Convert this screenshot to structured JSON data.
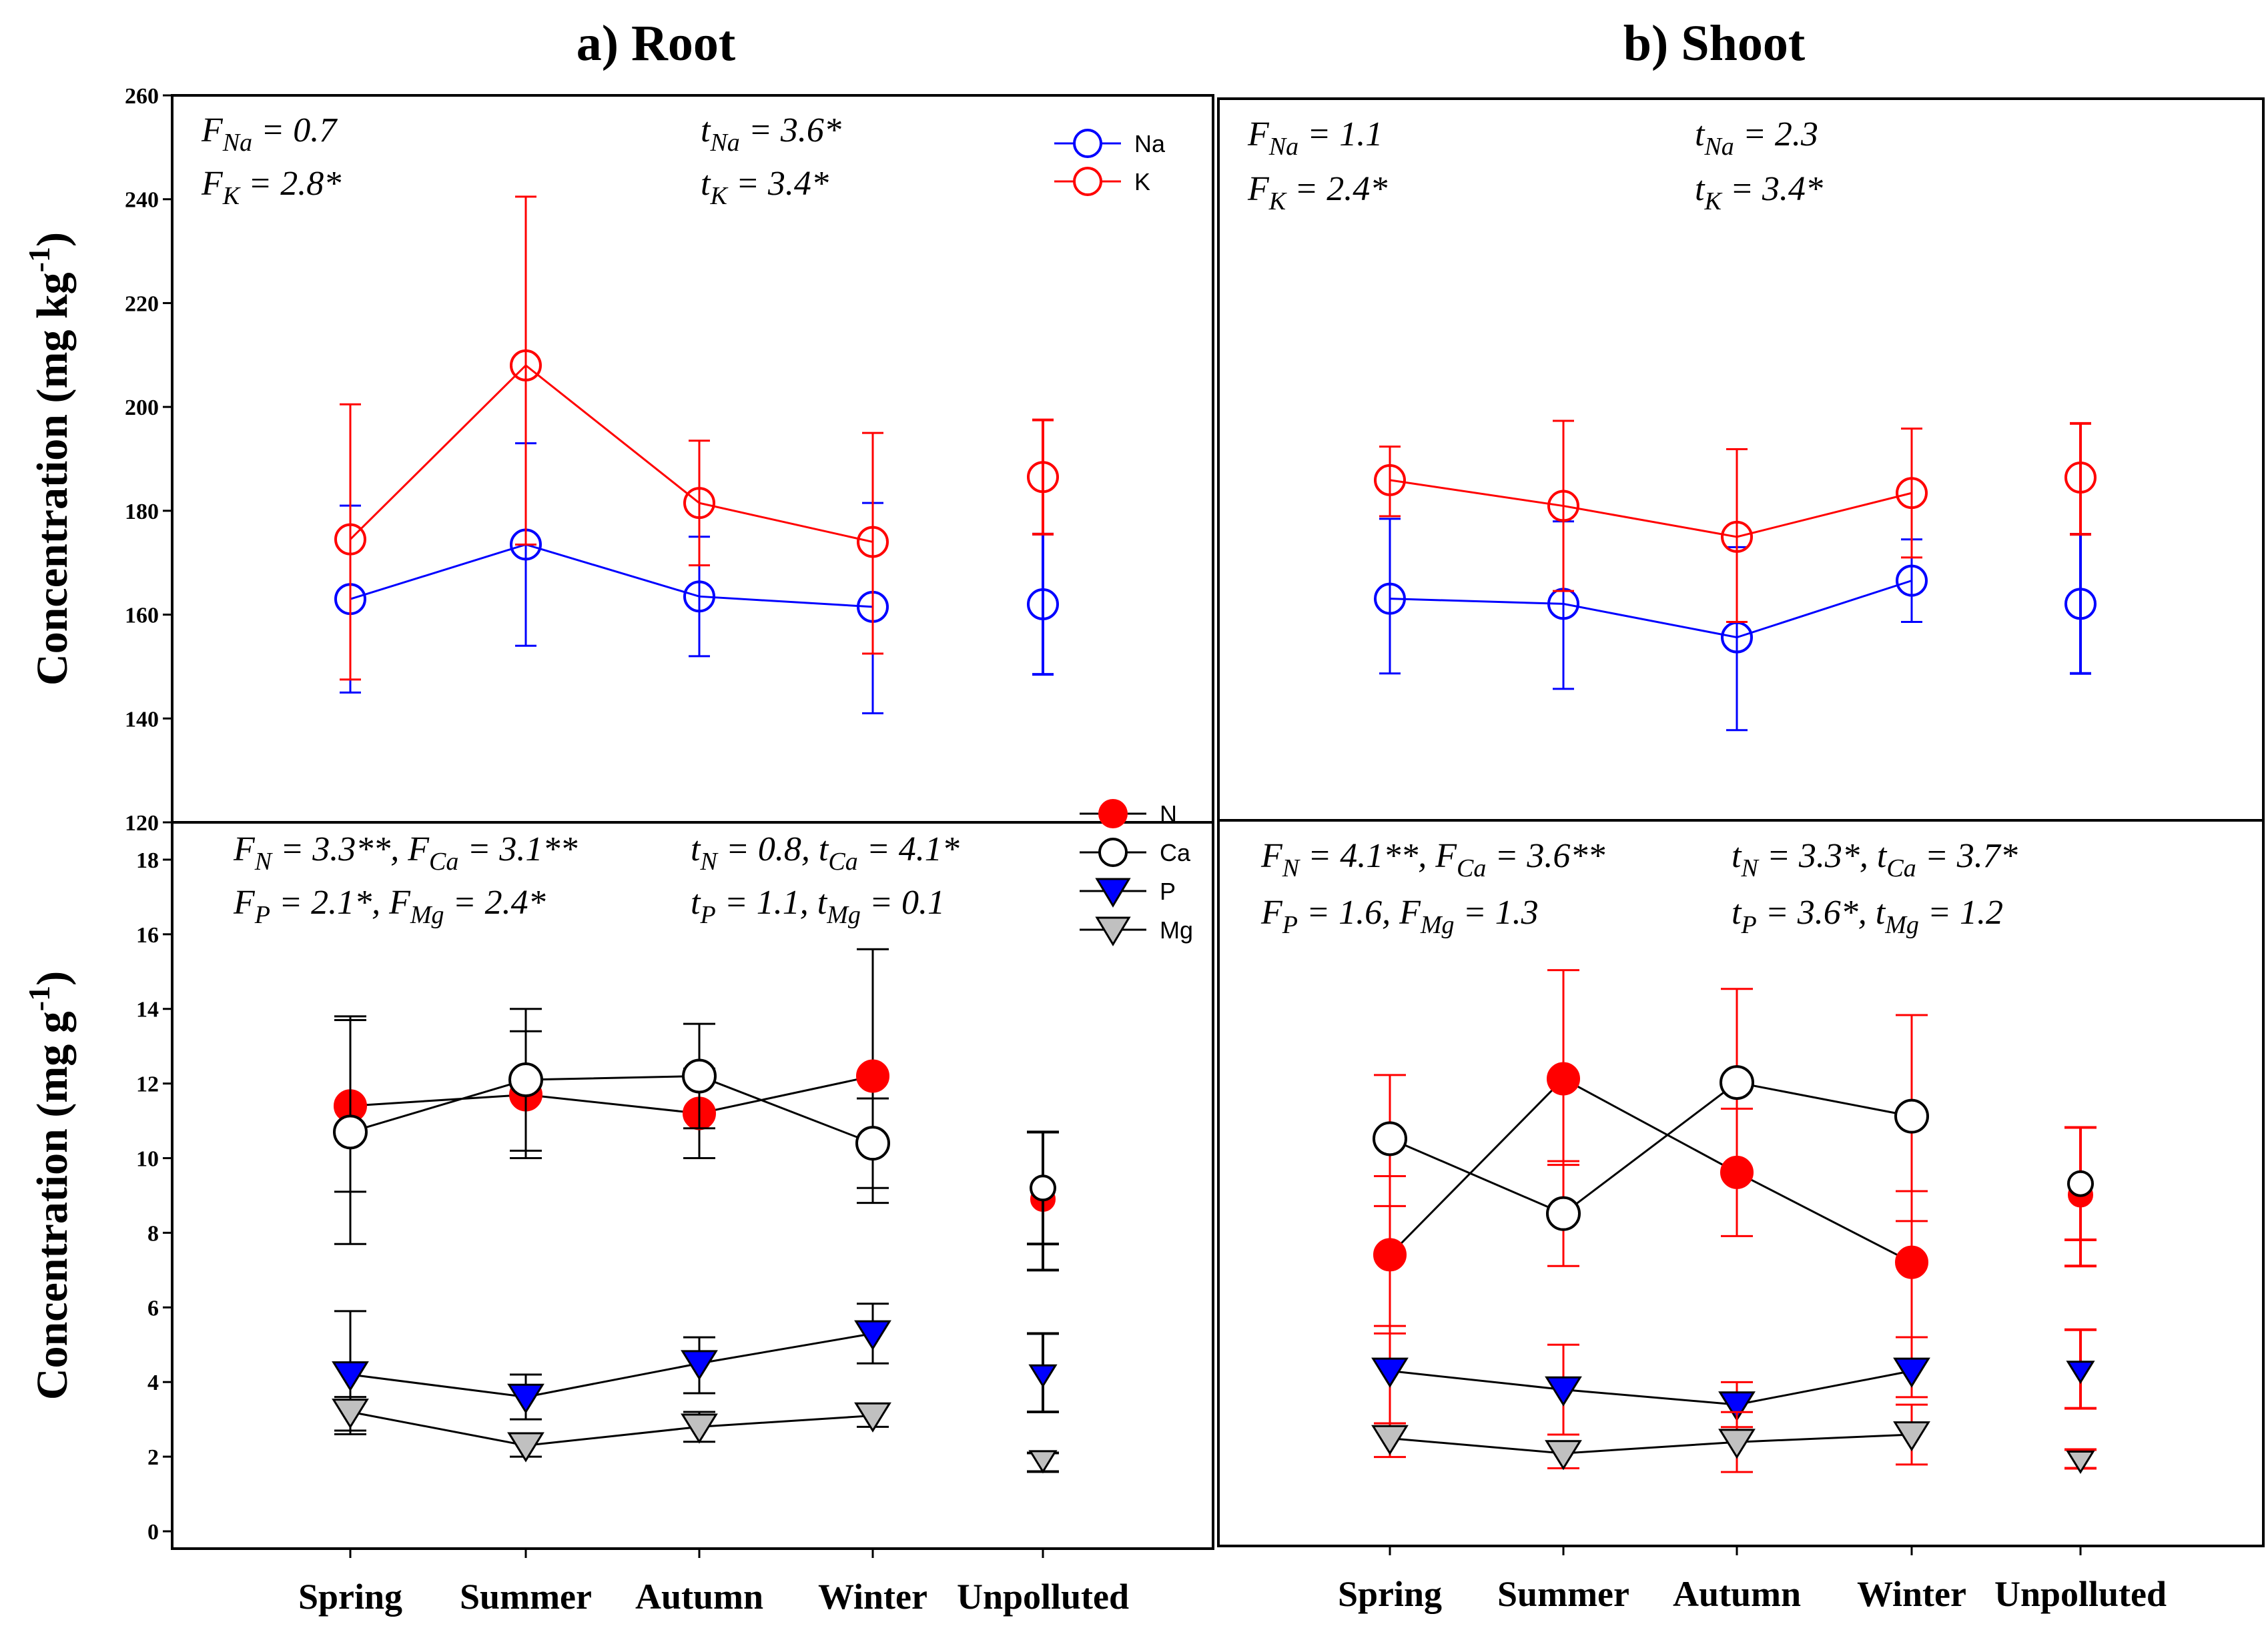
{
  "chart_data": [
    {
      "id": "root_nak",
      "type": "line",
      "title": "a) Root",
      "ylabel": "Concentration (mg kg-1)",
      "ylabel_main": "Concentration (mg kg",
      "ylabel_sup": "-1",
      "ylabel_close": ")",
      "ylim": [
        120,
        260
      ],
      "yticks": [
        120,
        140,
        160,
        180,
        200,
        220,
        240,
        260
      ],
      "categories": [
        "Spring",
        "Summer",
        "Autumn",
        "Winter",
        "Unpolluted"
      ],
      "connected_points": 4,
      "stats": [
        {
          "base": "F",
          "sub": "Na",
          "val": " = 0.7"
        },
        {
          "base": "F",
          "sub": "K",
          "val": " = 2.8*"
        },
        {
          "base": "t",
          "sub": "Na",
          "val": " = 3.6*"
        },
        {
          "base": "t",
          "sub": "K",
          "val": " = 3.4*"
        }
      ],
      "legend": [
        {
          "name": "Na",
          "marker": "circle-open",
          "color": "#0000ff"
        },
        {
          "name": "K",
          "marker": "circle-open",
          "color": "#ff0000"
        }
      ],
      "series": [
        {
          "name": "Na",
          "color": "#0000ff",
          "marker": "circle-open",
          "values": [
            163,
            173.5,
            163.5,
            161.5,
            162
          ],
          "errors": [
            [
              145,
              181
            ],
            [
              154,
              193
            ],
            [
              152,
              175
            ],
            [
              141,
              181.5
            ],
            [
              148.5,
              175.5
            ]
          ]
        },
        {
          "name": "K",
          "color": "#ff0000",
          "marker": "circle-open",
          "values": [
            174.5,
            208,
            181.5,
            174,
            186.5
          ],
          "errors": [
            [
              147.5,
              200.5
            ],
            [
              173.5,
              240.5
            ],
            [
              169.5,
              193.5
            ],
            [
              152.5,
              195
            ],
            [
              175.5,
              197.5
            ]
          ]
        }
      ]
    },
    {
      "id": "shoot_nak",
      "type": "line",
      "title": "b) Shoot",
      "ylim": [
        120,
        260
      ],
      "categories": [
        "Spring",
        "Summer",
        "Autumn",
        "Winter",
        "Unpolluted"
      ],
      "connected_points": 4,
      "stats": [
        {
          "base": "F",
          "sub": "Na",
          "val": " = 1.1"
        },
        {
          "base": "F",
          "sub": "K",
          "val": " = 2.4*"
        },
        {
          "base": "t",
          "sub": "Na",
          "val": " = 2.3"
        },
        {
          "base": "t",
          "sub": "K",
          "val": " = 3.4*"
        }
      ],
      "series": [
        {
          "name": "Na",
          "color": "#0000ff",
          "marker": "circle-open",
          "values": [
            163,
            162,
            155.5,
            166.5,
            162
          ],
          "errors": [
            [
              148.5,
              178.5
            ],
            [
              145.5,
              178
            ],
            [
              137.5,
              173
            ],
            [
              158.5,
              174.5
            ],
            [
              148.5,
              175.5
            ]
          ]
        },
        {
          "name": "K",
          "color": "#ff0000",
          "marker": "circle-open",
          "values": [
            186,
            181,
            175,
            183.5,
            186.5
          ],
          "errors": [
            [
              179,
              192.5
            ],
            [
              164.5,
              197.5
            ],
            [
              158.5,
              192
            ],
            [
              171,
              196
            ],
            [
              175.5,
              197
            ]
          ]
        }
      ]
    },
    {
      "id": "root_ncapmg",
      "type": "line",
      "ylabel": "Concentration (mg g-1)",
      "ylabel_main": "Concentration (mg g",
      "ylabel_sup": "-1",
      "ylabel_close": ")",
      "ylim": [
        0,
        19
      ],
      "yticks": [
        0,
        2,
        4,
        6,
        8,
        10,
        12,
        14,
        16,
        18
      ],
      "categories": [
        "Spring",
        "Summer",
        "Autumn",
        "Winter",
        "Unpolluted"
      ],
      "connected_points": 4,
      "stats": [
        {
          "base": "F",
          "sub": "N",
          "val": " = 3.3**, "
        },
        {
          "base": "F",
          "sub": "Ca",
          "val": " = 3.1**"
        },
        {
          "base": "F",
          "sub": "P",
          "val": " = 2.1*, "
        },
        {
          "base": "F",
          "sub": "Mg",
          "val": " = 2.4*"
        },
        {
          "base": "t",
          "sub": "N",
          "val": " =  0.8, "
        },
        {
          "base": "t",
          "sub": "Ca",
          "val": " = 4.1*"
        },
        {
          "base": "t",
          "sub": "P",
          "val": " = 1.1, "
        },
        {
          "base": "t",
          "sub": "Mg",
          "val": " = 0.1"
        }
      ],
      "legend": [
        {
          "name": "N",
          "marker": "circle-filled",
          "color": "#ff0000"
        },
        {
          "name": "Ca",
          "marker": "circle-open",
          "color": "#000000"
        },
        {
          "name": "P",
          "marker": "triangle-down",
          "color": "#0000ff"
        },
        {
          "name": "Mg",
          "marker": "triangle-down",
          "color": "#c0c0c0"
        }
      ],
      "series": [
        {
          "name": "N",
          "color": "#ff0000",
          "line": "#000000",
          "err": "#000000",
          "marker": "circle-filled",
          "values": [
            11.4,
            11.7,
            11.2,
            12.2,
            8.9
          ],
          "errors": [
            [
              9.1,
              13.7
            ],
            [
              10.0,
              13.4
            ],
            [
              10.0,
              12.4
            ],
            [
              8.8,
              15.6
            ],
            [
              7.0,
              10.7
            ]
          ]
        },
        {
          "name": "Ca",
          "color": "#ffffff",
          "line": "#000000",
          "err": "#000000",
          "marker": "circle-open",
          "values": [
            10.7,
            12.1,
            12.2,
            10.4,
            9.2
          ],
          "errors": [
            [
              7.7,
              13.8
            ],
            [
              10.2,
              14.0
            ],
            [
              10.8,
              13.6
            ],
            [
              9.2,
              11.6
            ],
            [
              7.7,
              10.7
            ]
          ]
        },
        {
          "name": "P",
          "color": "#0000ff",
          "line": "#000000",
          "err": "#000000",
          "marker": "triangle-down",
          "values": [
            4.2,
            3.6,
            4.5,
            5.3,
            4.2
          ],
          "errors": [
            [
              2.6,
              5.9
            ],
            [
              3.0,
              4.2
            ],
            [
              3.7,
              5.2
            ],
            [
              4.5,
              6.1
            ],
            [
              3.2,
              5.3
            ]
          ]
        },
        {
          "name": "Mg",
          "color": "#c0c0c0",
          "line": "#000000",
          "err": "#000000",
          "marker": "triangle-down",
          "values": [
            3.2,
            2.3,
            2.8,
            3.1,
            1.9
          ],
          "errors": [
            [
              2.7,
              3.6
            ],
            [
              2.0,
              2.6
            ],
            [
              2.4,
              3.2
            ],
            [
              2.8,
              3.4
            ],
            [
              1.6,
              2.1
            ]
          ]
        }
      ]
    },
    {
      "id": "shoot_ncapmg",
      "type": "line",
      "ylim": [
        0,
        19
      ],
      "categories": [
        "Spring",
        "Summer",
        "Autumn",
        "Winter",
        "Unpolluted"
      ],
      "connected_points": 4,
      "stats": [
        {
          "base": "F",
          "sub": "N",
          "val": " = 4.1**, "
        },
        {
          "base": "F",
          "sub": "Ca",
          "val": " = 3.6**"
        },
        {
          "base": "F",
          "sub": "P",
          "val": " = 1.6, "
        },
        {
          "base": "F",
          "sub": "Mg",
          "val": " = 1.3"
        },
        {
          "base": "t",
          "sub": "N",
          "val": " =  3.3*, "
        },
        {
          "base": "t",
          "sub": "Ca",
          "val": " = 3.7*"
        },
        {
          "base": "t",
          "sub": "P",
          "val": " = 3.6*, "
        },
        {
          "base": "t",
          "sub": "Mg",
          "val": " = 1.2"
        }
      ],
      "series": [
        {
          "name": "N",
          "color": "#ff0000",
          "line": "#000000",
          "err": "#ff0000",
          "marker": "circle-filled",
          "values": [
            7.4,
            12.1,
            9.6,
            7.2,
            9.0
          ],
          "errors": [
            [
              5.3,
              9.5
            ],
            [
              9.8,
              15.0
            ],
            [
              7.9,
              11.3
            ],
            [
              5.2,
              9.1
            ],
            [
              7.1,
              10.8
            ]
          ]
        },
        {
          "name": "Ca",
          "color": "#ffffff",
          "line": "#000000",
          "err": "#ff0000",
          "marker": "circle-open",
          "values": [
            10.5,
            8.5,
            12.0,
            11.1,
            9.3
          ],
          "errors": [
            [
              8.7,
              12.2
            ],
            [
              7.1,
              9.9
            ],
            [
              9.5,
              14.5
            ],
            [
              8.3,
              13.8
            ],
            [
              7.8,
              10.8
            ]
          ]
        },
        {
          "name": "P",
          "color": "#0000ff",
          "line": "#000000",
          "err": "#ff0000",
          "marker": "triangle-down",
          "values": [
            4.3,
            3.8,
            3.4,
            4.3,
            4.3
          ],
          "errors": [
            [
              2.9,
              5.5
            ],
            [
              2.6,
              5.0
            ],
            [
              2.8,
              4.0
            ],
            [
              3.6,
              5.2
            ],
            [
              3.3,
              5.4
            ]
          ]
        },
        {
          "name": "Mg",
          "color": "#c0c0c0",
          "line": "#000000",
          "err": "#ff0000",
          "marker": "triangle-down",
          "values": [
            2.5,
            2.1,
            2.4,
            2.6,
            1.9
          ],
          "errors": [
            [
              2.0,
              2.9
            ],
            [
              1.7,
              2.4
            ],
            [
              1.6,
              3.2
            ],
            [
              1.8,
              3.4
            ],
            [
              1.7,
              2.2
            ]
          ]
        }
      ]
    }
  ]
}
